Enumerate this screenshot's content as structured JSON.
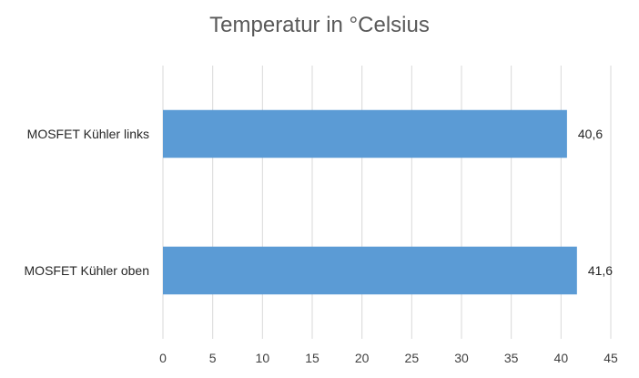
{
  "chart_data": {
    "type": "bar",
    "orientation": "horizontal",
    "title": "Temperatur in °Celsius",
    "categories": [
      "MOSFET Kühler links",
      "MOSFET Kühler oben"
    ],
    "values": [
      40.6,
      41.6
    ],
    "data_labels": [
      "40,6",
      "41,6"
    ],
    "xlim": [
      0,
      45
    ],
    "x_ticks": [
      0,
      5,
      10,
      15,
      20,
      25,
      30,
      35,
      40,
      45
    ],
    "x_tick_labels": [
      "0",
      "5",
      "10",
      "15",
      "20",
      "25",
      "30",
      "35",
      "40",
      "45"
    ],
    "xlabel": "",
    "ylabel": "",
    "grid": "vertical",
    "legend": "none",
    "bar_color": "#5B9BD5",
    "grid_color": "#D9D9D9"
  }
}
